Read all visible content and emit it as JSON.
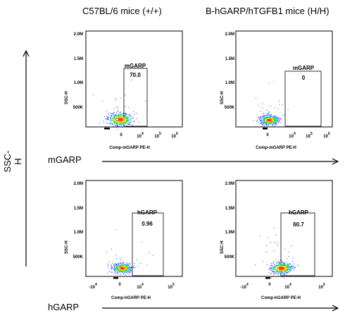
{
  "headers": {
    "left": "C57BL/6 mice (+/+)",
    "right": "B-hGARP/hTGFB1 mice (H/H)"
  },
  "y_axis_label": "SSC-H",
  "row_labels": {
    "m": "mGARP",
    "h": "hGARP"
  },
  "chart_data": [
    {
      "type": "scatter",
      "id": "m-left",
      "xlabel": "Comp-mGARP PE-H",
      "ylabel": "SSC-H",
      "ylim": [
        0,
        2000000
      ],
      "yticks": [
        "2.0M",
        "1.5M",
        "1.0M",
        "500K"
      ],
      "xtick_exponents": [
        "4",
        "5",
        "6"
      ],
      "xtick_plain": [
        "0"
      ],
      "gate": {
        "label": "mGARP",
        "value": "70.0"
      },
      "events_color": "#2040ff"
    },
    {
      "type": "scatter",
      "id": "m-right",
      "xlabel": "Comp-mGARP PE-H",
      "ylabel": "SSC-H",
      "ylim": [
        0,
        2000000
      ],
      "yticks": [
        "2.0M",
        "1.5M",
        "1.0M",
        "500K"
      ],
      "xtick_exponents": [
        "4",
        "5",
        "6"
      ],
      "xtick_plain": [
        "0"
      ],
      "gate": {
        "label": "mGARP",
        "value": "0"
      },
      "events_color": "#2040ff"
    },
    {
      "type": "scatter",
      "id": "h-left",
      "xlabel": "Comp-hGARP PE-H",
      "ylabel": "SSC-H",
      "ylim": [
        0,
        2000000
      ],
      "yticks": [
        "2.0M",
        "1.5M",
        "1.0M",
        "500K"
      ],
      "xtick_exponents": [
        "4",
        "5"
      ],
      "xtick_plain": [
        "0"
      ],
      "xtick_neg": "-10",
      "gate": {
        "label": "hGARP",
        "value": "0.96"
      },
      "events_color": "#2040ff"
    },
    {
      "type": "scatter",
      "id": "h-right",
      "xlabel": "Comp-hGARP PE-H",
      "ylabel": "SSC-H",
      "ylim": [
        0,
        2000000
      ],
      "yticks": [
        "2.0M",
        "1.5M",
        "1.0M",
        "500K"
      ],
      "xtick_exponents": [
        "4",
        "5"
      ],
      "xtick_plain": [
        "0"
      ],
      "xtick_neg": "-10",
      "gate": {
        "label": "hGARP",
        "value": "60.7"
      },
      "events_color": "#2040ff"
    }
  ]
}
